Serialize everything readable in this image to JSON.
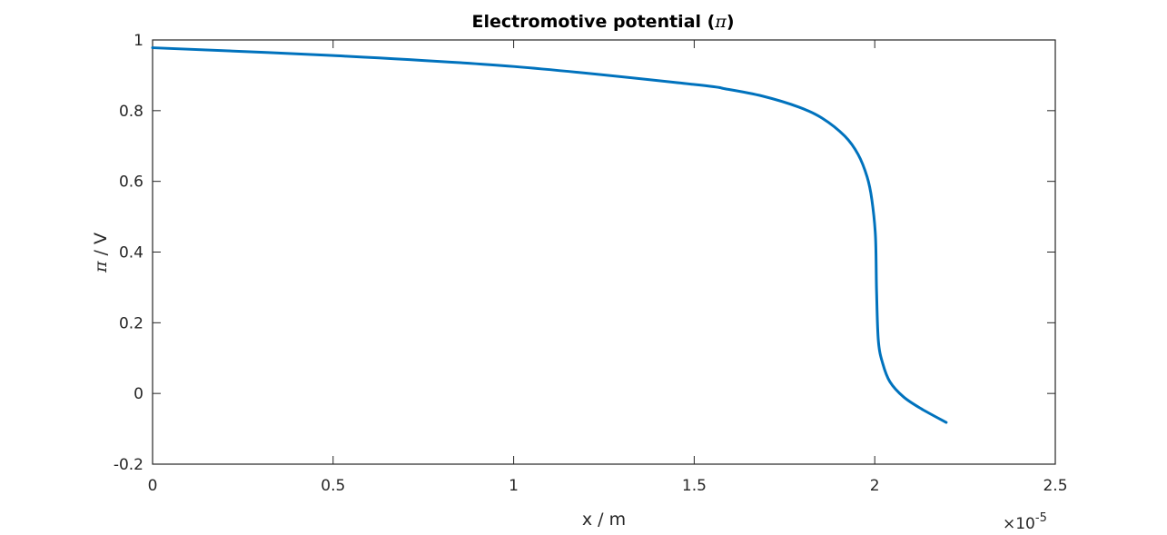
{
  "chart_data": {
    "type": "line",
    "title": "Electromotive potential (π)",
    "title_parts": {
      "prefix": "Electromotive potential (",
      "symbol": "π",
      "suffix": ")"
    },
    "xlabel": "x / m",
    "ylabel": "π / V",
    "ylabel_parts": {
      "symbol": "π",
      "suffix": " / V"
    },
    "x_multiplier": "×10",
    "x_exponent": "-5",
    "xlim": [
      0,
      2.5
    ],
    "ylim": [
      -0.2,
      1
    ],
    "xticks": [
      0,
      0.5,
      1,
      1.5,
      2,
      2.5
    ],
    "xtick_labels": [
      "0",
      "0.5",
      "1",
      "1.5",
      "2",
      "2.5"
    ],
    "yticks": [
      -0.2,
      0,
      0.2,
      0.4,
      0.6,
      0.8,
      1
    ],
    "ytick_labels": [
      "-0.2",
      "0",
      "0.2",
      "0.4",
      "0.6",
      "0.8",
      "1"
    ],
    "grid": false,
    "legend": null,
    "series": [
      {
        "name": "π",
        "color": "#0072BD",
        "x_scale": "1e-5",
        "x": [
          0,
          0.5,
          1.0,
          1.5,
          1.59,
          1.69,
          1.79,
          1.854,
          1.917,
          1.954,
          1.979,
          1.992,
          2.002,
          2.005,
          2.01,
          2.022,
          2.042,
          2.08,
          2.13,
          2.198
        ],
        "y": [
          0.978,
          0.956,
          0.925,
          0.874,
          0.861,
          0.841,
          0.81,
          0.779,
          0.728,
          0.676,
          0.612,
          0.548,
          0.445,
          0.29,
          0.149,
          0.085,
          0.033,
          -0.01,
          -0.044,
          -0.082
        ]
      }
    ]
  },
  "colors": {
    "line": "#0072BD",
    "axis": "#262626",
    "background": "#ffffff"
  }
}
